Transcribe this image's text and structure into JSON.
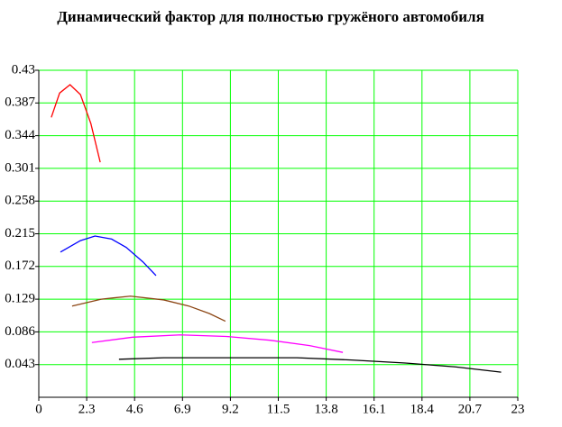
{
  "chart_data": {
    "type": "line",
    "title": "Динамический фактор для полностью гружёного автомобиля",
    "xlim": [
      0,
      23
    ],
    "xticks": [
      0,
      2.3,
      4.6,
      6.9,
      9.2,
      11.5,
      13.8,
      16.1,
      18.4,
      20.7,
      23
    ],
    "ylim": [
      0,
      0.43
    ],
    "yticks": [
      0.043,
      0.086,
      0.129,
      0.172,
      0.215,
      0.258,
      0.301,
      0.344,
      0.387,
      0.43
    ],
    "grid": true,
    "grid_color": "#00ff00",
    "series": [
      {
        "color": "#ff0000",
        "x": [
          0.6,
          1.0,
          1.5,
          2.0,
          2.5,
          2.95
        ],
        "values": [
          0.368,
          0.4,
          0.411,
          0.398,
          0.36,
          0.309
        ]
      },
      {
        "color": "#0000ff",
        "x": [
          1.04,
          2.0,
          2.7,
          3.5,
          4.2,
          5.0,
          5.63
        ],
        "values": [
          0.191,
          0.206,
          0.212,
          0.208,
          0.197,
          0.178,
          0.16
        ]
      },
      {
        "color": "#8b4513",
        "x": [
          1.6,
          3.0,
          4.4,
          6.0,
          7.2,
          8.2,
          8.96
        ],
        "values": [
          0.12,
          0.129,
          0.133,
          0.128,
          0.12,
          0.11,
          0.1
        ]
      },
      {
        "color": "#ff00ff",
        "x": [
          2.55,
          4.5,
          6.8,
          9.0,
          11.1,
          13.0,
          14.6
        ],
        "values": [
          0.072,
          0.079,
          0.082,
          0.08,
          0.075,
          0.068,
          0.059
        ]
      },
      {
        "color": "#000000",
        "x": [
          3.85,
          6.0,
          9.0,
          12.4,
          15.0,
          17.6,
          20.0,
          22.2
        ],
        "values": [
          0.05,
          0.052,
          0.052,
          0.052,
          0.049,
          0.045,
          0.04,
          0.033
        ]
      }
    ]
  }
}
